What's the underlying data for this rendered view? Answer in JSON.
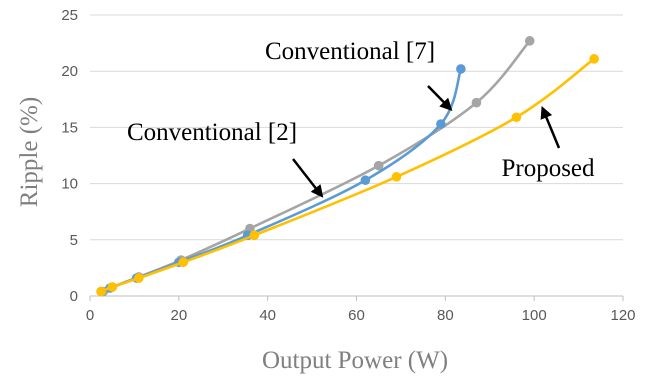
{
  "chart_data": {
    "type": "line",
    "title": "",
    "xlabel": "Output Power  (W)",
    "ylabel": "Ripple  (%)",
    "xlim": [
      0,
      120
    ],
    "ylim": [
      0,
      25
    ],
    "xticks": [
      "0",
      "20",
      "40",
      "60",
      "80",
      "100",
      "120"
    ],
    "yticks": [
      "0",
      "5",
      "10",
      "15",
      "20",
      "25"
    ],
    "grid": "horizontal",
    "legend": "none (inline annotations with arrows)",
    "series": [
      {
        "name": "Conventional [2]",
        "color": "#a5a5a5",
        "points": [
          [
            3,
            0.4
          ],
          [
            5,
            0.8
          ],
          [
            11,
            1.7
          ],
          [
            20.5,
            3.2
          ],
          [
            36,
            6.0
          ],
          [
            65,
            11.6
          ],
          [
            87,
            17.2
          ],
          [
            99,
            22.7
          ]
        ]
      },
      {
        "name": "Conventional [7]",
        "color": "#5b9bd5",
        "points": [
          [
            2.5,
            0.4
          ],
          [
            4.5,
            0.7
          ],
          [
            10.5,
            1.6
          ],
          [
            20,
            3.0
          ],
          [
            35.5,
            5.4
          ],
          [
            62,
            10.3
          ],
          [
            79,
            15.3
          ],
          [
            83.5,
            20.2
          ]
        ]
      },
      {
        "name": "Proposed",
        "color": "#ffc000",
        "points": [
          [
            2.5,
            0.4
          ],
          [
            5,
            0.8
          ],
          [
            11,
            1.6
          ],
          [
            21,
            3.0
          ],
          [
            37,
            5.4
          ],
          [
            69,
            10.6
          ],
          [
            96,
            15.9
          ],
          [
            113.5,
            21.1
          ]
        ]
      }
    ],
    "annotations": [
      {
        "text": "Conventional [7]",
        "series": "Conventional [7]",
        "arrow_to": [
          81,
          16.7
        ]
      },
      {
        "text": "Conventional [2]",
        "series": "Conventional [2]",
        "arrow_to": [
          52,
          9.0
        ]
      },
      {
        "text": "Proposed",
        "series": "Proposed",
        "arrow_to": [
          102,
          16.6
        ]
      }
    ]
  }
}
